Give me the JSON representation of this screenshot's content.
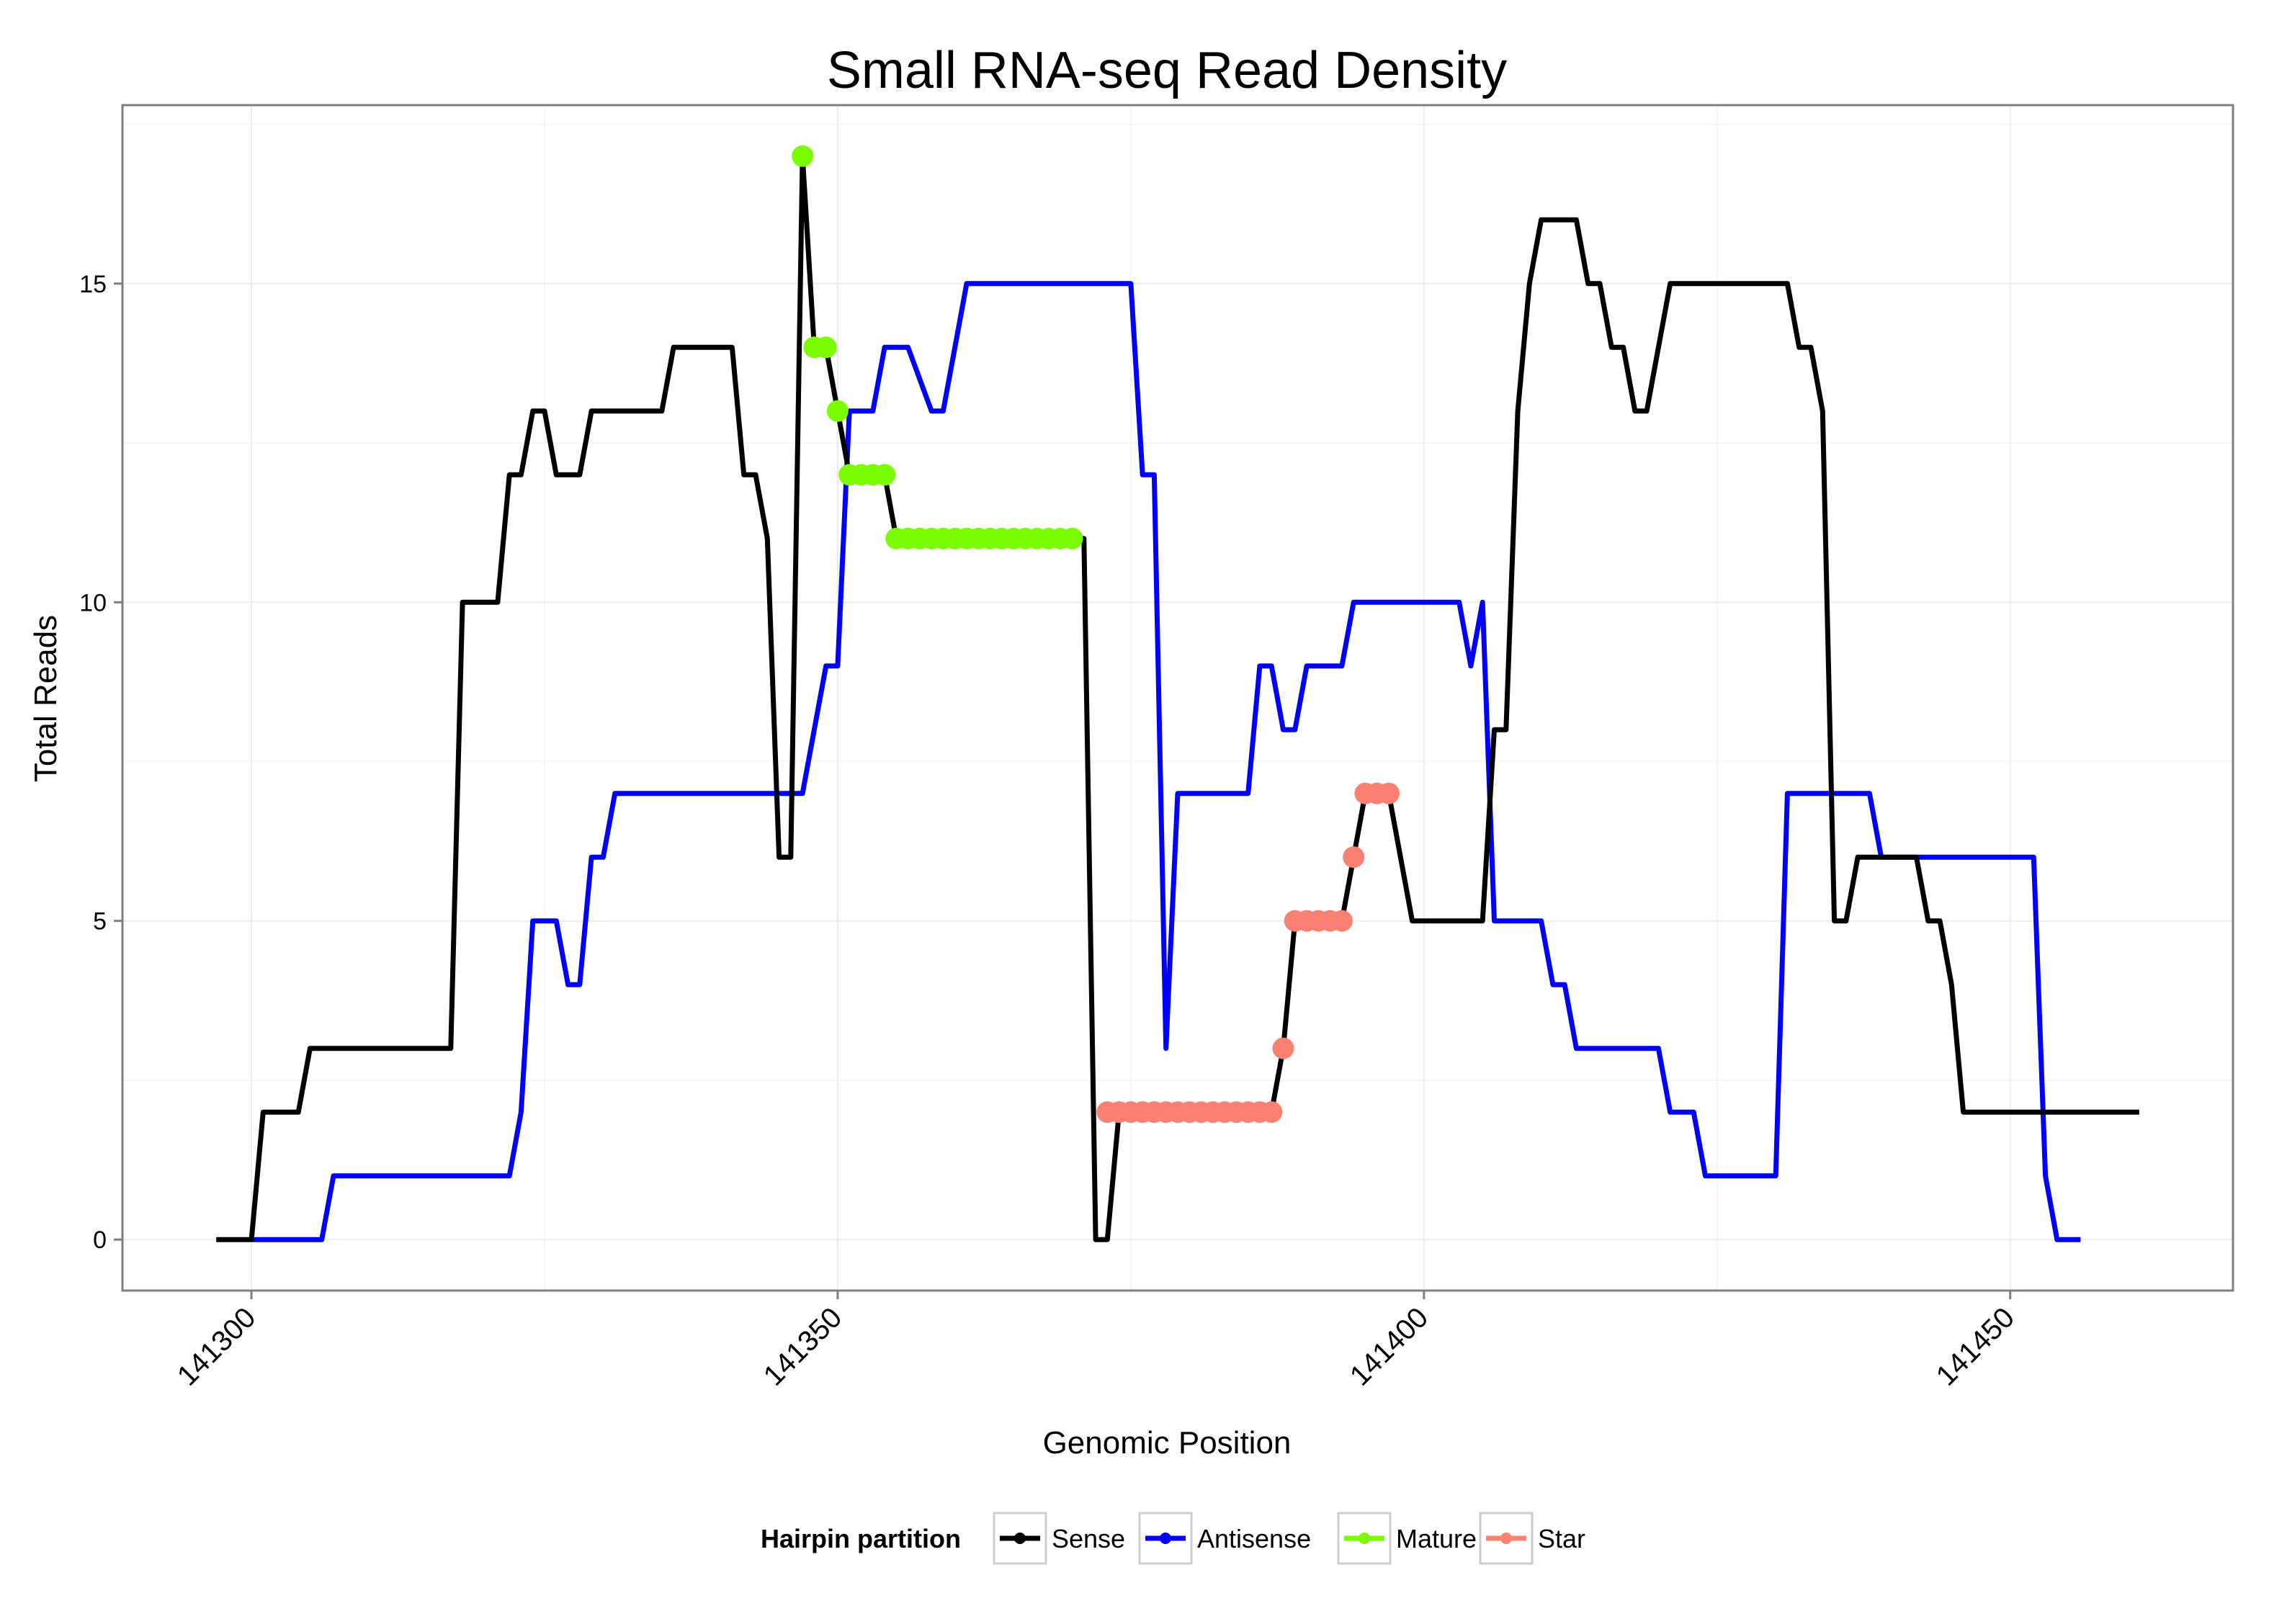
{
  "chart_data": {
    "type": "line",
    "title": "Small RNA-seq Read Density",
    "xlabel": "Genomic Position",
    "ylabel": "Total Reads",
    "xlim": [
      141289,
      141469
    ],
    "ylim": [
      -0.8,
      17.8
    ],
    "grid": true,
    "x_ticks": [
      141300,
      141350,
      141400,
      141450
    ],
    "x_tick_labels": [
      "141300",
      "141350",
      "141400",
      "141450"
    ],
    "y_ticks": [
      0,
      5,
      10,
      15
    ],
    "y_tick_labels": [
      "0",
      "5",
      "10",
      "15"
    ],
    "legend": {
      "title": "Hairpin partition",
      "position": "bottom",
      "entries": [
        {
          "label": "Sense",
          "color": "#000000"
        },
        {
          "label": "Antisense",
          "color": "#0000ff"
        },
        {
          "label": "Mature",
          "color": "#7cfc00"
        },
        {
          "label": "Star",
          "color": "#fa8072"
        }
      ]
    },
    "series": [
      {
        "name": "Antisense",
        "color": "#0000ff",
        "mode": "line",
        "x": [
          141300,
          141306,
          141307,
          141322,
          141323,
          141324,
          141326,
          141327,
          141328,
          141329,
          141330,
          141331,
          141347,
          141349,
          141350,
          141351,
          141353,
          141354,
          141356,
          141358,
          141359,
          141361,
          141362,
          141375,
          141376,
          141377,
          141378,
          141379,
          141385,
          141386,
          141387,
          141388,
          141389,
          141390,
          141393,
          141394,
          141403,
          141404,
          141405,
          141406,
          141410,
          141411,
          141412,
          141413,
          141420,
          141421,
          141423,
          141424,
          141430,
          141431,
          141438,
          141439,
          141452,
          141453,
          141454,
          141456
        ],
        "y": [
          0,
          0,
          1,
          1,
          2,
          5,
          5,
          4,
          4,
          6,
          6,
          7,
          7,
          9,
          9,
          13,
          13,
          14,
          14,
          13,
          13,
          15,
          15,
          15,
          12,
          12,
          3,
          7,
          7,
          9,
          9,
          8,
          8,
          9,
          9,
          10,
          10,
          9,
          10,
          5,
          5,
          4,
          4,
          3,
          3,
          2,
          2,
          1,
          1,
          7,
          7,
          6,
          6,
          1,
          0,
          0
        ]
      },
      {
        "name": "Sense",
        "color": "#000000",
        "mode": "line",
        "x": [
          141297,
          141300,
          141301,
          141304,
          141305,
          141317,
          141318,
          141321,
          141322,
          141323,
          141324,
          141325,
          141326,
          141328,
          141329,
          141335,
          141336,
          141341,
          141342,
          141343,
          141344,
          141345,
          141346,
          141347,
          141348,
          141349,
          141350,
          141351,
          141352,
          141353,
          141354,
          141355,
          141370,
          141371,
          141372,
          141373,
          141374,
          141387,
          141388,
          141389,
          141393,
          141394,
          141395,
          141396,
          141397,
          141399,
          141405,
          141406,
          141407,
          141408,
          141409,
          141410,
          141411,
          141413,
          141414,
          141415,
          141416,
          141417,
          141418,
          141419,
          141420,
          141421,
          141422,
          141431,
          141432,
          141433,
          141434,
          141435,
          141436,
          141437,
          141438,
          141442,
          141443,
          141444,
          141445,
          141446,
          141448,
          141449,
          141451,
          141460,
          141461
        ],
        "y": [
          0,
          0,
          2,
          2,
          3,
          3,
          10,
          10,
          12,
          12,
          13,
          13,
          12,
          12,
          13,
          13,
          14,
          14,
          12,
          12,
          11,
          6,
          6,
          17,
          14,
          14,
          13,
          12,
          12,
          12,
          12,
          11,
          11,
          11,
          0,
          0,
          2,
          2,
          3,
          5,
          5,
          6,
          7,
          7,
          7,
          5,
          5,
          8,
          8,
          13,
          15,
          16,
          16,
          16,
          15,
          15,
          14,
          14,
          13,
          13,
          14,
          15,
          15,
          15,
          14,
          14,
          13,
          5,
          5,
          6,
          6,
          6,
          5,
          5,
          4,
          2,
          2,
          2,
          2,
          2,
          2
        ]
      },
      {
        "name": "Mature",
        "color": "#7cfc00",
        "mode": "points",
        "x": [
          141347,
          141348,
          141349,
          141350,
          141351,
          141352,
          141353,
          141354,
          141355,
          141356,
          141357,
          141358,
          141359,
          141360,
          141361,
          141362,
          141363,
          141364,
          141365,
          141366,
          141367,
          141368,
          141369,
          141370
        ],
        "y": [
          17,
          14,
          14,
          13,
          12,
          12,
          12,
          12,
          11,
          11,
          11,
          11,
          11,
          11,
          11,
          11,
          11,
          11,
          11,
          11,
          11,
          11,
          11,
          11
        ]
      },
      {
        "name": "Star",
        "color": "#fa8072",
        "mode": "points",
        "x": [
          141373,
          141374,
          141375,
          141376,
          141377,
          141378,
          141379,
          141380,
          141381,
          141382,
          141383,
          141384,
          141385,
          141386,
          141387,
          141388,
          141389,
          141390,
          141391,
          141392,
          141393,
          141394,
          141395,
          141396,
          141397
        ],
        "y": [
          2,
          2,
          2,
          2,
          2,
          2,
          2,
          2,
          2,
          2,
          2,
          2,
          2,
          2,
          2,
          3,
          5,
          5,
          5,
          5,
          5,
          6,
          7,
          7,
          7
        ]
      }
    ]
  }
}
